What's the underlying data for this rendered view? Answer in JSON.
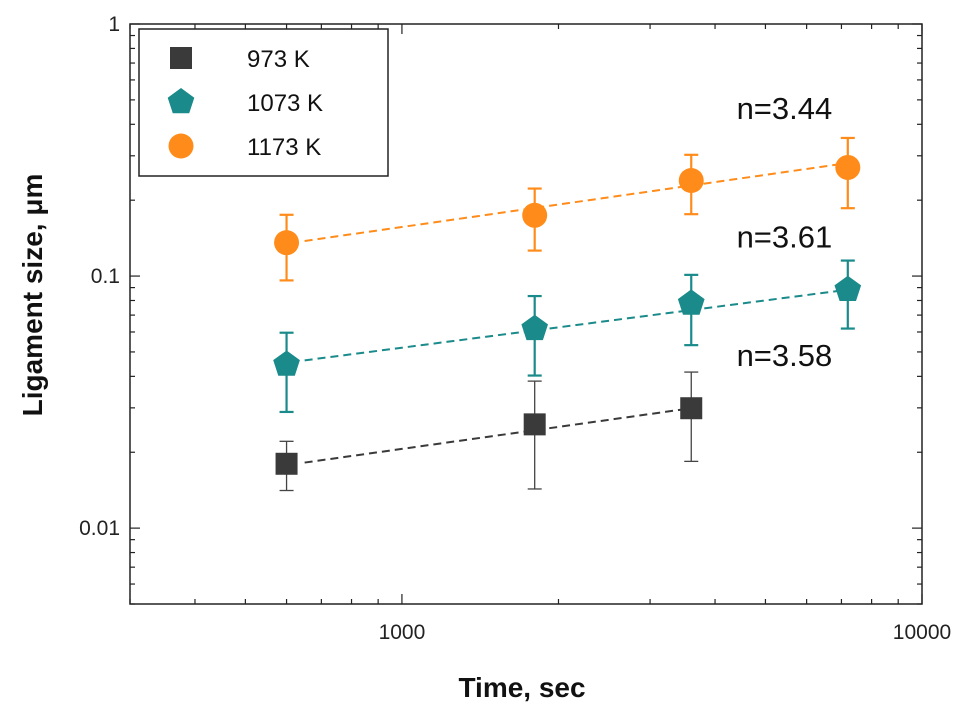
{
  "chart_data": {
    "type": "scatter",
    "title": "",
    "xlabel": "Time, sec",
    "ylabel": "Ligament size, μm",
    "x_scale": "log",
    "y_scale": "log",
    "xlim": [
      300,
      10000
    ],
    "ylim": [
      0.005,
      1
    ],
    "x_ticks": [
      {
        "value": 1000,
        "label": "1000"
      },
      {
        "value": 10000,
        "label": "10000"
      }
    ],
    "y_ticks": [
      {
        "value": 0.01,
        "label": "0.01"
      },
      {
        "value": 0.1,
        "label": "0.1"
      },
      {
        "value": 1,
        "label": "1"
      }
    ],
    "grid": false,
    "legend_position": "top-left",
    "series": [
      {
        "name": "973 K",
        "color": "#3a3a3a",
        "marker": "square",
        "points": [
          {
            "x": 600,
            "y": 0.018,
            "err_low": 0.0141,
            "err_high": 0.0221
          },
          {
            "x": 1800,
            "y": 0.0258,
            "err_low": 0.0143,
            "err_high": 0.0383
          },
          {
            "x": 3600,
            "y": 0.0299,
            "err_low": 0.0184,
            "err_high": 0.0416
          }
        ]
      },
      {
        "name": "1073 K",
        "color": "#1a8a8a",
        "marker": "pentagon",
        "points": [
          {
            "x": 600,
            "y": 0.0446,
            "err_low": 0.0289,
            "err_high": 0.0596
          },
          {
            "x": 1800,
            "y": 0.0618,
            "err_low": 0.0403,
            "err_high": 0.0833
          },
          {
            "x": 3600,
            "y": 0.0779,
            "err_low": 0.0532,
            "err_high": 0.1011
          },
          {
            "x": 7200,
            "y": 0.0883,
            "err_low": 0.0619,
            "err_high": 0.1152
          }
        ]
      },
      {
        "name": "1173 K",
        "color": "#ff8c1a",
        "marker": "circle",
        "points": [
          {
            "x": 600,
            "y": 0.1357,
            "err_low": 0.0961,
            "err_high": 0.175
          },
          {
            "x": 1800,
            "y": 0.1742,
            "err_low": 0.1262,
            "err_high": 0.2224
          },
          {
            "x": 3600,
            "y": 0.2394,
            "err_low": 0.176,
            "err_high": 0.3027
          },
          {
            "x": 7200,
            "y": 0.2697,
            "err_low": 0.1859,
            "err_high": 0.3531
          }
        ]
      }
    ],
    "fit_lines": [
      {
        "series": "973 K",
        "x": [
          650,
          3600
        ],
        "y": [
          0.0182,
          0.0299
        ]
      },
      {
        "series": "1073 K",
        "x": [
          650,
          7200
        ],
        "y": [
          0.0463,
          0.0883
        ]
      },
      {
        "series": "1173 K",
        "x": [
          650,
          7200
        ],
        "y": [
          0.1378,
          0.2808
        ]
      }
    ],
    "annotations": [
      {
        "text": "n=3.44",
        "x": 4400,
        "y": 0.42
      },
      {
        "text": "n=3.61",
        "x": 4400,
        "y": 0.13
      },
      {
        "text": "n=3.58",
        "x": 4400,
        "y": 0.044
      }
    ]
  }
}
